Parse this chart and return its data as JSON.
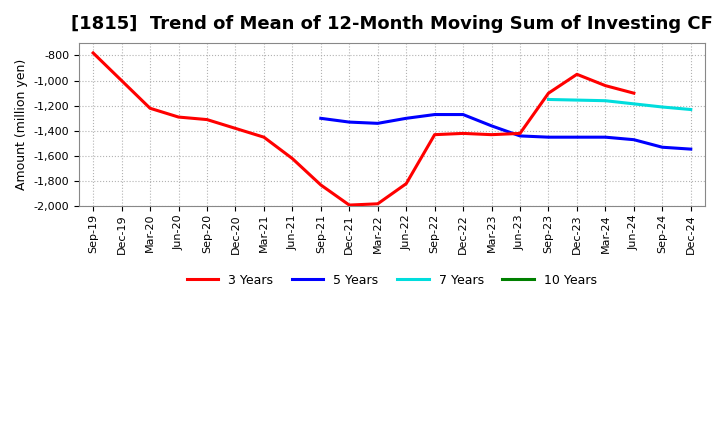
{
  "title": "[1815]  Trend of Mean of 12-Month Moving Sum of Investing CF",
  "ylabel": "Amount (million yen)",
  "x_labels": [
    "Sep-19",
    "Dec-19",
    "Mar-20",
    "Jun-20",
    "Sep-20",
    "Dec-20",
    "Mar-21",
    "Jun-21",
    "Sep-21",
    "Dec-21",
    "Mar-22",
    "Jun-22",
    "Sep-22",
    "Dec-22",
    "Mar-23",
    "Jun-23",
    "Sep-23",
    "Dec-23",
    "Mar-24",
    "Jun-24",
    "Sep-24",
    "Dec-24"
  ],
  "ylim": [
    -2000,
    -700
  ],
  "yticks": [
    -2000,
    -1800,
    -1600,
    -1400,
    -1200,
    -1000,
    -800
  ],
  "series": {
    "3yr": {
      "color": "#ff0000",
      "label": "3 Years",
      "x": [
        0,
        1,
        2,
        3,
        4,
        5,
        6,
        7,
        8,
        9,
        10,
        11,
        12,
        13,
        14,
        15,
        16,
        17,
        18,
        19
      ],
      "y": [
        -780,
        -1000,
        -1220,
        -1290,
        -1310,
        -1380,
        -1450,
        -1620,
        -1830,
        -1990,
        -1980,
        -1820,
        -1430,
        -1420,
        -1430,
        -1420,
        -1100,
        -950,
        -1040,
        -1100
      ]
    },
    "5yr": {
      "color": "#0000ff",
      "label": "5 Years",
      "x": [
        8,
        9,
        10,
        11,
        12,
        13,
        14,
        15,
        16,
        17,
        18,
        19,
        20,
        21
      ],
      "y": [
        -1300,
        -1330,
        -1340,
        -1300,
        -1270,
        -1270,
        -1360,
        -1440,
        -1450,
        -1450,
        -1450,
        -1470,
        -1530,
        -1545
      ]
    },
    "7yr": {
      "color": "#00dddd",
      "label": "7 Years",
      "x": [
        16,
        17,
        18,
        19,
        20,
        21
      ],
      "y": [
        -1150,
        -1155,
        -1160,
        -1185,
        -1210,
        -1230
      ]
    },
    "10yr": {
      "color": "#008000",
      "label": "10 Years",
      "x": [],
      "y": []
    }
  },
  "background_color": "#ffffff",
  "plot_bg_color": "#ffffff",
  "grid_color": "#aaaaaa",
  "title_fontsize": 13,
  "axis_fontsize": 9,
  "tick_fontsize": 8
}
